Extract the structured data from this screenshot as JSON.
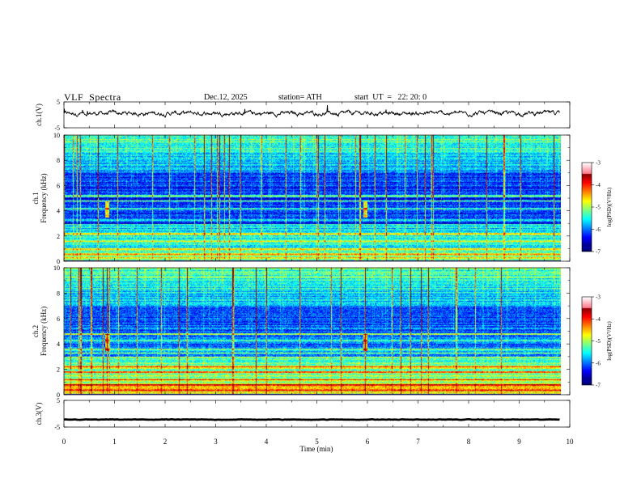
{
  "header": {
    "title": "VLF  Spectra",
    "date": "Dec.12, 2025",
    "station": "station= ATH",
    "start": "start  UT  =   22: 20: 0"
  },
  "chart_data": [
    {
      "type": "line",
      "panel": "ch1-waveform",
      "ylabel": "ch.1(V)",
      "yticks": [
        "5",
        "-5"
      ],
      "ylim": [
        -5,
        5
      ],
      "xlim": [
        0,
        10
      ],
      "description_values": {
        "baseline": 0.6,
        "noise_amplitude": 0.9,
        "data_end_min": 9.8
      }
    },
    {
      "type": "heatmap",
      "panel": "ch1-spectrogram",
      "ylabel": "ch.1\nFrequency  (kHz)",
      "ylabel_lines": [
        "ch.1",
        "Frequency  (kHz)"
      ],
      "yticks": [
        "10",
        "8",
        "6",
        "4",
        "2",
        "0"
      ],
      "ylim": [
        0,
        10
      ],
      "xlim": [
        0,
        10
      ],
      "colorbar": {
        "label": "log(PSD)(V²/Hz)",
        "ticks": [
          "-3",
          "-4",
          "-5",
          "-6",
          "-7"
        ],
        "range": [
          -7,
          -3
        ]
      },
      "bands_khz": [
        0.3,
        0.6,
        1.0,
        1.6,
        2.2,
        3.3,
        4.2,
        4.8,
        5.2
      ],
      "sferic_minutes": [
        0.85,
        5.95
      ]
    },
    {
      "type": "heatmap",
      "panel": "ch2-spectrogram",
      "ylabel_lines": [
        "ch.2",
        "Frequency  (kHz)"
      ],
      "yticks": [
        "10",
        "8",
        "6",
        "4",
        "2",
        "0"
      ],
      "ylim": [
        0,
        10
      ],
      "xlim": [
        0,
        10
      ],
      "colorbar": {
        "label": "log(PSD)(V²/Hz)",
        "ticks": [
          "-3",
          "-4",
          "-5",
          "-6",
          "-7"
        ],
        "range": [
          -7,
          -3
        ]
      },
      "bands_khz": [
        0.4,
        0.8,
        1.2,
        1.8,
        2.2,
        3.3,
        3.6,
        4.3,
        4.8
      ],
      "sferic_minutes": [
        0.85,
        5.95
      ]
    },
    {
      "type": "line",
      "panel": "ch3-waveform",
      "ylabel": "ch.3(V)",
      "yticks": [
        "5",
        "-5"
      ],
      "ylim": [
        -5,
        5
      ],
      "xlim": [
        0,
        10
      ],
      "description_values": {
        "baseline": -2.2,
        "noise_amplitude": 0.1,
        "data_end_min": 9.8
      }
    }
  ],
  "xaxis": {
    "label": "Time  (min)",
    "ticks": [
      "0",
      "1",
      "2",
      "3",
      "4",
      "5",
      "6",
      "7",
      "8",
      "9",
      "10"
    ]
  }
}
